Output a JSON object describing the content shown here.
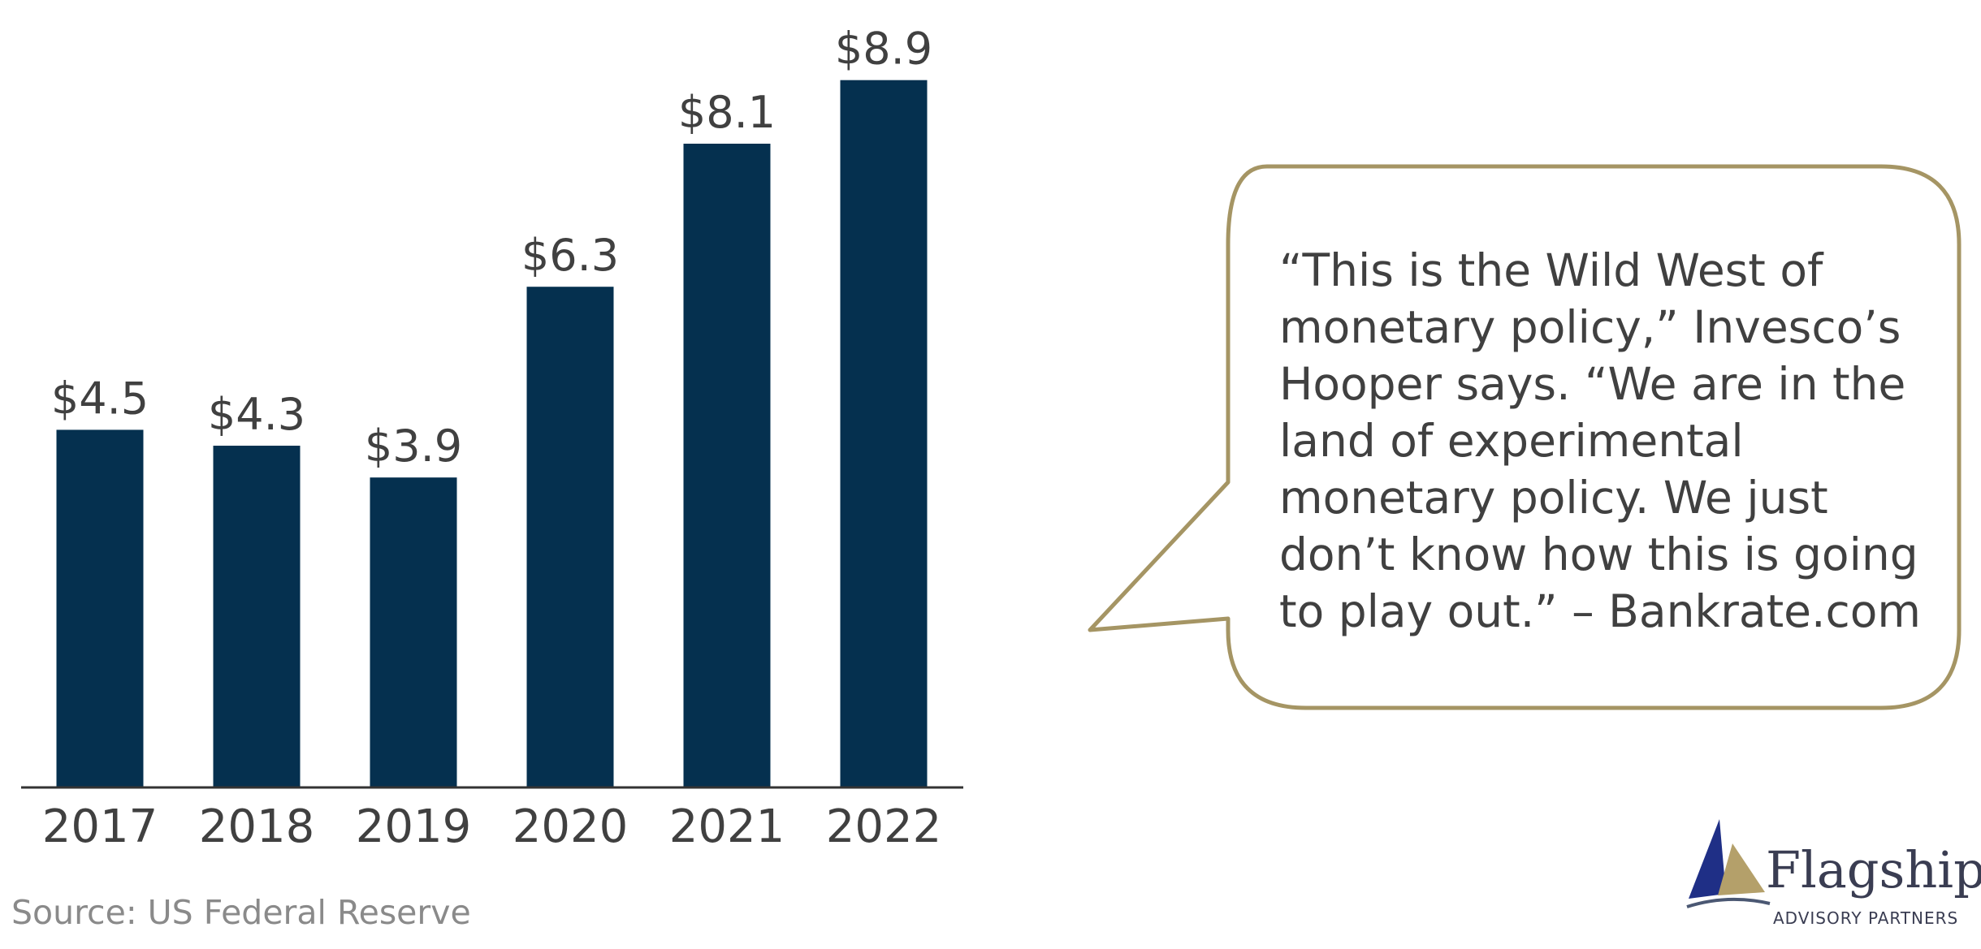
{
  "chart_data": {
    "type": "bar",
    "categories": [
      "2017",
      "2018",
      "2019",
      "2020",
      "2021",
      "2022"
    ],
    "values": [
      4.5,
      4.3,
      3.9,
      6.3,
      8.1,
      8.9
    ],
    "data_labels": [
      "$4.5",
      "$4.3",
      "$3.9",
      "$6.3",
      "$8.1",
      "$8.9"
    ],
    "title": "",
    "xlabel": "",
    "ylabel": "",
    "ylim": [
      0,
      9.5
    ],
    "grid": false,
    "bar_color": "#05304f"
  },
  "source": "Source: US Federal Reserve",
  "quote": {
    "text": "“This is the Wild West of monetary policy,” Invesco’s Hooper says. “We are in the land of experimental monetary policy. We just don’t know how this is going to play out.” – Bankrate.com",
    "border_color": "#a59564"
  },
  "logo": {
    "name": "Flagship",
    "subtitle": "ADVISORY PARTNERS",
    "mark_icon": "sail-icon"
  }
}
